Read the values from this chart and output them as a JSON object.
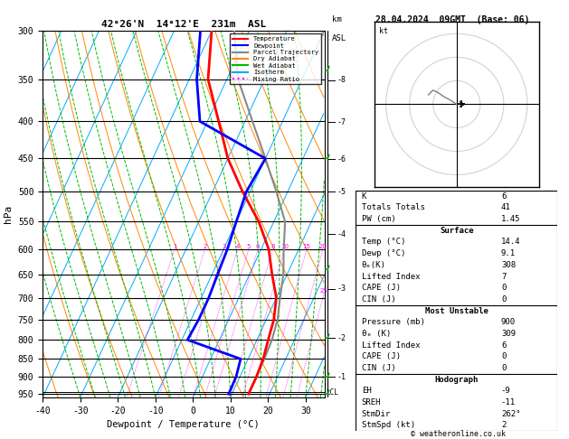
{
  "title_left": "42°26'N  14°12'E  231m  ASL",
  "title_right": "28.04.2024  09GMT  (Base: 06)",
  "xlabel": "Dewpoint / Temperature (°C)",
  "ylabel_left": "hPa",
  "pressure_ticks": [
    300,
    350,
    400,
    450,
    500,
    550,
    600,
    650,
    700,
    750,
    800,
    850,
    900,
    950
  ],
  "temp_ticks": [
    -40,
    -30,
    -20,
    -10,
    0,
    10,
    20,
    30
  ],
  "km_ticks": [
    8,
    7,
    6,
    5,
    4,
    3,
    2,
    1
  ],
  "km_pressures": [
    351,
    401,
    451,
    500,
    572,
    680,
    795,
    900
  ],
  "lcl_pressure": 945,
  "colors": {
    "temp": "#ff0000",
    "dewpoint": "#0000ff",
    "parcel": "#888888",
    "dry_adiabat": "#ff8800",
    "wet_adiabat": "#00bb00",
    "isotherm": "#00aaff",
    "mixing_ratio": "#ff00ff"
  },
  "legend_entries": [
    {
      "label": "Temperature",
      "color": "#ff0000",
      "style": "solid"
    },
    {
      "label": "Dewpoint",
      "color": "#0000ff",
      "style": "solid"
    },
    {
      "label": "Parcel Trajectory",
      "color": "#888888",
      "style": "solid"
    },
    {
      "label": "Dry Adiabat",
      "color": "#ff8800",
      "style": "solid"
    },
    {
      "label": "Wet Adiabat",
      "color": "#00bb00",
      "style": "solid"
    },
    {
      "label": "Isotherm",
      "color": "#00aaff",
      "style": "solid"
    },
    {
      "label": "Mixing Ratio",
      "color": "#ff00ff",
      "style": "dotted"
    }
  ],
  "temperature_profile": {
    "pressure": [
      950,
      900,
      850,
      800,
      750,
      700,
      650,
      600,
      550,
      500,
      450,
      400,
      350,
      300
    ],
    "temp": [
      14.4,
      14.4,
      14.0,
      13.0,
      12.0,
      10.0,
      6.0,
      2.0,
      -4.0,
      -12.0,
      -20.0,
      -27.0,
      -35.0,
      -40.0
    ]
  },
  "dewpoint_profile": {
    "pressure": [
      950,
      900,
      850,
      800,
      750,
      700,
      650,
      600,
      550,
      500,
      450,
      400,
      350,
      300
    ],
    "temp": [
      9.1,
      9.0,
      8.0,
      -8.5,
      -8.0,
      -8.0,
      -8.5,
      -9.0,
      -10.0,
      -11.0,
      -10.0,
      -32.0,
      -38.0,
      -43.0
    ]
  },
  "parcel_profile": {
    "pressure": [
      950,
      900,
      850,
      800,
      750,
      700,
      650,
      600,
      550,
      500,
      450,
      400,
      350,
      300
    ],
    "temp": [
      14.4,
      14.4,
      14.3,
      14.0,
      13.0,
      11.0,
      9.0,
      6.0,
      3.0,
      -3.0,
      -10.0,
      -18.0,
      -27.0,
      -34.0
    ]
  },
  "stats": {
    "K": 6,
    "totals_totals": 41,
    "PW_cm": 1.45,
    "surface_temp": 14.4,
    "surface_dewp": 9.1,
    "surface_theta_e": 308,
    "surface_lifted_index": 7,
    "surface_CAPE": 0,
    "surface_CIN": 0,
    "mu_pressure": 900,
    "mu_theta_e": 309,
    "mu_lifted_index": 6,
    "mu_CAPE": 0,
    "mu_CIN": 0,
    "hodo_EH": -9,
    "hodo_SREH": -11,
    "hodo_StmDir": 262,
    "hodo_StmSpd": 2
  }
}
